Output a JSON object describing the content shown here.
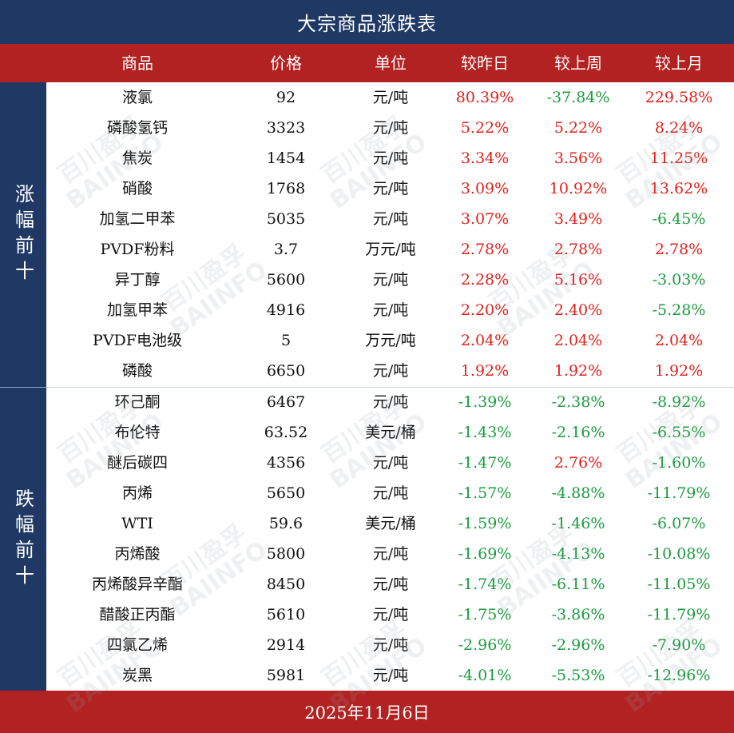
{
  "title": "大宗商品涨跌表",
  "headers": {
    "name": "商品",
    "price": "价格",
    "unit": "单位",
    "day": "较昨日",
    "week": "较上周",
    "month": "较上月"
  },
  "groups": {
    "up_label": "涨幅前十",
    "down_label": "跌幅前十"
  },
  "rows": [
    {
      "name": "液氯",
      "price": "92",
      "unit": "元/吨",
      "day": "80.39%",
      "week": "-37.84%",
      "month": "229.58%"
    },
    {
      "name": "磷酸氢钙",
      "price": "3323",
      "unit": "元/吨",
      "day": "5.22%",
      "week": "5.22%",
      "month": "8.24%"
    },
    {
      "name": "焦炭",
      "price": "1454",
      "unit": "元/吨",
      "day": "3.34%",
      "week": "3.56%",
      "month": "11.25%"
    },
    {
      "name": "硝酸",
      "price": "1768",
      "unit": "元/吨",
      "day": "3.09%",
      "week": "10.92%",
      "month": "13.62%"
    },
    {
      "name": "加氢二甲苯",
      "price": "5035",
      "unit": "元/吨",
      "day": "3.07%",
      "week": "3.49%",
      "month": "-6.45%"
    },
    {
      "name": "PVDF粉料",
      "price": "3.7",
      "unit": "万元/吨",
      "day": "2.78%",
      "week": "2.78%",
      "month": "2.78%"
    },
    {
      "name": "异丁醇",
      "price": "5600",
      "unit": "元/吨",
      "day": "2.28%",
      "week": "5.16%",
      "month": "-3.03%"
    },
    {
      "name": "加氢甲苯",
      "price": "4916",
      "unit": "元/吨",
      "day": "2.20%",
      "week": "2.40%",
      "month": "-5.28%"
    },
    {
      "name": "PVDF电池级",
      "price": "5",
      "unit": "万元/吨",
      "day": "2.04%",
      "week": "2.04%",
      "month": "2.04%"
    },
    {
      "name": "磷酸",
      "price": "6650",
      "unit": "元/吨",
      "day": "1.92%",
      "week": "1.92%",
      "month": "1.92%"
    },
    {
      "name": "环己酮",
      "price": "6467",
      "unit": "元/吨",
      "day": "-1.39%",
      "week": "-2.38%",
      "month": "-8.92%"
    },
    {
      "name": "布伦特",
      "price": "63.52",
      "unit": "美元/桶",
      "day": "-1.43%",
      "week": "-2.16%",
      "month": "-6.55%"
    },
    {
      "name": "醚后碳四",
      "price": "4356",
      "unit": "元/吨",
      "day": "-1.47%",
      "week": "2.76%",
      "month": "-1.60%"
    },
    {
      "name": "丙烯",
      "price": "5650",
      "unit": "元/吨",
      "day": "-1.57%",
      "week": "-4.88%",
      "month": "-11.79%"
    },
    {
      "name": "WTI",
      "price": "59.6",
      "unit": "美元/桶",
      "day": "-1.59%",
      "week": "-1.46%",
      "month": "-6.07%"
    },
    {
      "name": "丙烯酸",
      "price": "5800",
      "unit": "元/吨",
      "day": "-1.69%",
      "week": "-4.13%",
      "month": "-10.08%"
    },
    {
      "name": "丙烯酸异辛酯",
      "price": "8450",
      "unit": "元/吨",
      "day": "-1.74%",
      "week": "-6.11%",
      "month": "-11.05%"
    },
    {
      "name": "醋酸正丙酯",
      "price": "5610",
      "unit": "元/吨",
      "day": "-1.75%",
      "week": "-3.86%",
      "month": "-11.79%"
    },
    {
      "name": "四氯乙烯",
      "price": "2914",
      "unit": "元/吨",
      "day": "-2.96%",
      "week": "-2.96%",
      "month": "-7.90%"
    },
    {
      "name": "炭黑",
      "price": "5981",
      "unit": "元/吨",
      "day": "-4.01%",
      "week": "-5.53%",
      "month": "-12.96%"
    }
  ],
  "footer": "2025年11月6日",
  "watermark": "百川盈孚 BAIINFO",
  "colors": {
    "navy": "#1f3864",
    "header_red": "#b22222",
    "up": "#e0201b",
    "down": "#1a9c3e"
  }
}
